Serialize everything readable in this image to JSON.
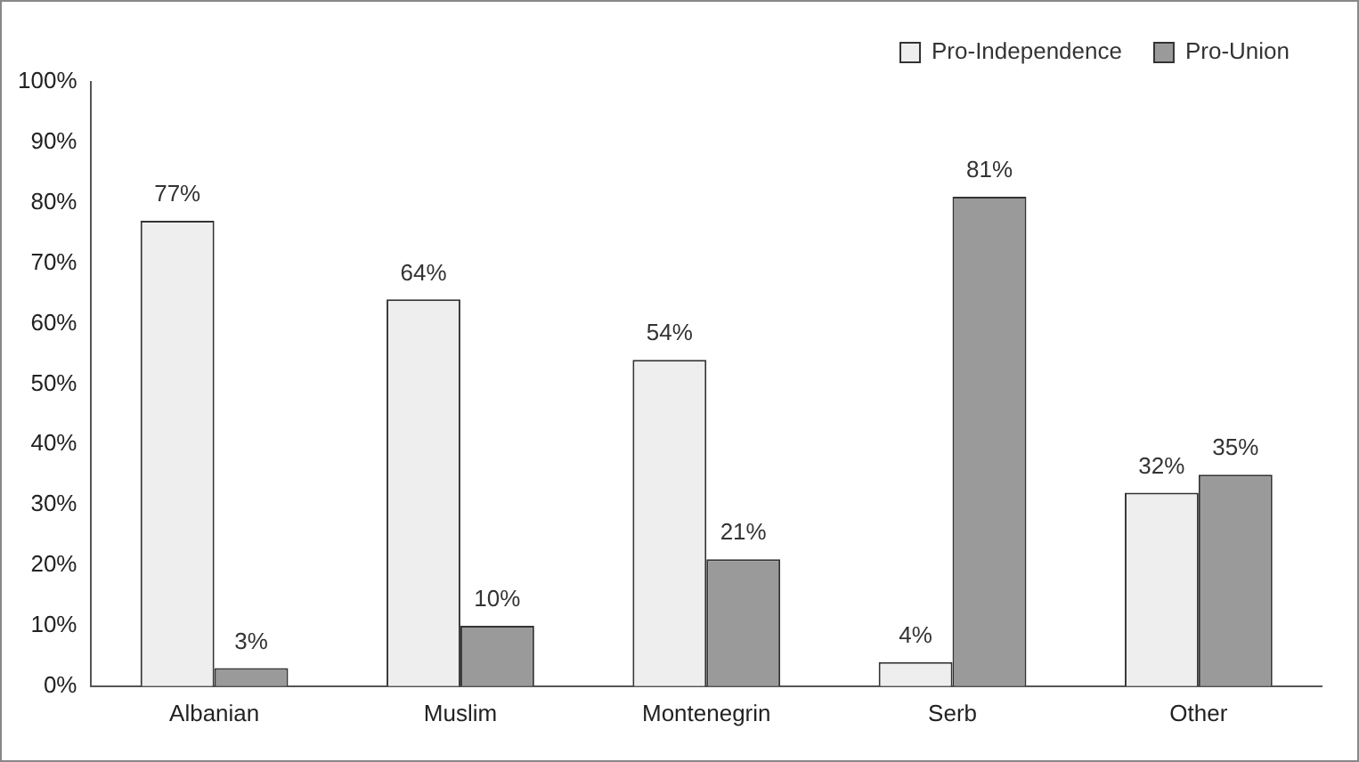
{
  "chart_data": {
    "type": "bar",
    "categories": [
      "Albanian",
      "Muslim",
      "Montenegrin",
      "Serb",
      "Other"
    ],
    "series": [
      {
        "name": "Pro-Independence",
        "color": "#eeeeee",
        "values": [
          77,
          64,
          54,
          4,
          32
        ],
        "value_labels": [
          "77%",
          "64%",
          "54%",
          "4%",
          "32%"
        ]
      },
      {
        "name": "Pro-Union",
        "color": "#9a9a9a",
        "values": [
          3,
          10,
          21,
          81,
          35
        ],
        "value_labels": [
          "3%",
          "10%",
          "21%",
          "81%",
          "35%"
        ]
      }
    ],
    "ylim": [
      0,
      100
    ],
    "yticks": [
      {
        "value": 0,
        "label": "0%"
      },
      {
        "value": 10,
        "label": "10%"
      },
      {
        "value": 20,
        "label": "20%"
      },
      {
        "value": 30,
        "label": "30%"
      },
      {
        "value": 40,
        "label": "40%"
      },
      {
        "value": 50,
        "label": "50%"
      },
      {
        "value": 60,
        "label": "60%"
      },
      {
        "value": 70,
        "label": "70%"
      },
      {
        "value": 80,
        "label": "80%"
      },
      {
        "value": 90,
        "label": "90%"
      },
      {
        "value": 100,
        "label": "100%"
      }
    ],
    "grid": false,
    "legend": "top right"
  }
}
